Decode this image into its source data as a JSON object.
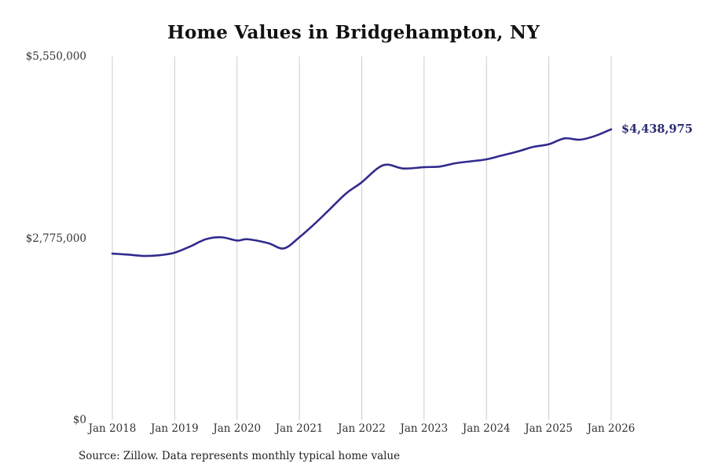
{
  "chart_data": {
    "type": "line",
    "title": "Home Values in Bridgehampton, NY",
    "source_note": "Source: Zillow. Data represents monthly typical home value",
    "ylim": [
      0,
      5550000
    ],
    "grid": "vertical-only",
    "grid_color": "#cccccc",
    "background_color": "#ffffff",
    "y_ticks": [
      {
        "label": "$5,550,000",
        "value": 5550000
      },
      {
        "label": "$2,775,000",
        "value": 2775000
      },
      {
        "label": "$0",
        "value": 0
      }
    ],
    "x_tick_labels": [
      "Jan 2018",
      "Jan 2019",
      "Jan 2020",
      "Jan 2021",
      "Jan 2022",
      "Jan 2023",
      "Jan 2024",
      "Jan 2025",
      "Jan 2026"
    ],
    "x_range_months": [
      0,
      96
    ],
    "series": [
      {
        "name": "Monthly typical home value",
        "color": "#322b8d",
        "line_width": 2.6,
        "months_since_jan_2018": [
          0,
          3,
          6,
          9,
          12,
          15,
          18,
          21,
          24,
          26,
          30,
          33,
          36,
          39,
          42,
          45,
          48,
          51,
          53,
          56,
          60,
          63,
          66,
          69,
          72,
          75,
          78,
          81,
          84,
          87,
          90,
          93,
          96
        ],
        "values": [
          2540000,
          2525000,
          2505000,
          2515000,
          2555000,
          2650000,
          2760000,
          2790000,
          2740000,
          2760000,
          2700000,
          2620000,
          2790000,
          3000000,
          3230000,
          3460000,
          3630000,
          3840000,
          3900000,
          3840000,
          3860000,
          3870000,
          3920000,
          3950000,
          3980000,
          4040000,
          4100000,
          4170000,
          4210000,
          4300000,
          4280000,
          4340000,
          4438975
        ]
      }
    ],
    "annotation": {
      "text": "$4,438,975",
      "value": 4438975,
      "color": "#2c2a75"
    }
  }
}
